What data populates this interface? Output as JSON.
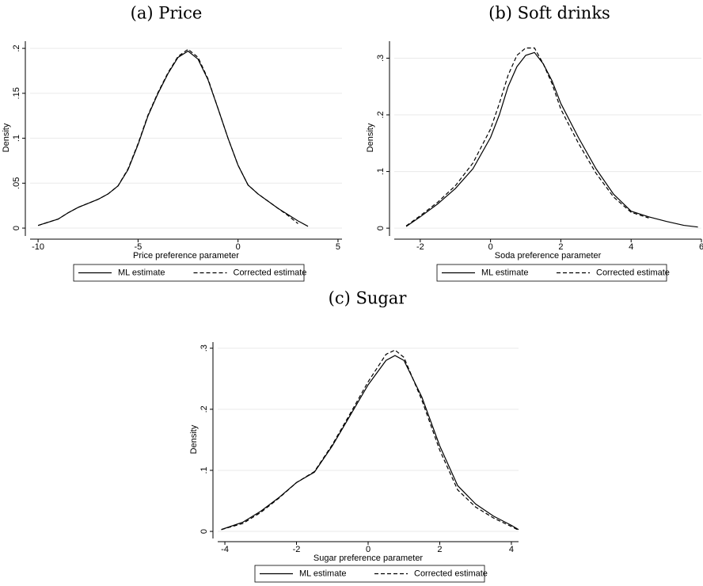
{
  "chart_data": [
    {
      "type": "line",
      "title": "(a) Price",
      "xlabel": "Price preference parameter",
      "ylabel": "Density",
      "grid": true,
      "xlim": [
        -10.4,
        5.2
      ],
      "xticks": [
        -10,
        -5,
        0,
        5
      ],
      "ylim": [
        -0.007,
        0.208
      ],
      "yticks": [
        0,
        {
          "value": 0.05,
          "label": ".05"
        },
        {
          "value": 0.1,
          "label": ".1"
        },
        {
          "value": 0.15,
          "label": ".15"
        },
        {
          "value": 0.2,
          "label": ".2"
        }
      ],
      "x": [
        -10,
        -9,
        -8.5,
        -8,
        -7,
        -6.5,
        -6,
        -5.5,
        -5,
        -4.5,
        -4,
        -3.5,
        -3,
        -2.5,
        -2,
        -1.5,
        -1,
        -0.5,
        0,
        0.5,
        1,
        1.5,
        2,
        2.5,
        3,
        3.5
      ],
      "series": [
        {
          "name": "ML estimate",
          "color": "#000000",
          "style": "solid",
          "values": [
            0.003,
            0.01,
            0.017,
            0.023,
            0.032,
            0.038,
            0.047,
            0.065,
            0.093,
            0.125,
            0.15,
            0.172,
            0.19,
            0.197,
            0.188,
            0.165,
            0.133,
            0.1,
            0.07,
            0.048,
            0.038,
            0.03,
            0.022,
            0.015,
            0.008,
            0.002
          ]
        },
        {
          "name": "Corrected estimate",
          "color": "#000000",
          "style": "dashed",
          "values": [
            0.003,
            0.01,
            0.017,
            0.023,
            0.032,
            0.038,
            0.047,
            0.066,
            0.094,
            0.126,
            0.151,
            0.173,
            0.191,
            0.199,
            0.19,
            0.166,
            0.133,
            0.1,
            0.07,
            0.048,
            0.038,
            0.03,
            0.022,
            0.014,
            0.005,
            null
          ]
        }
      ]
    },
    {
      "type": "line",
      "title": "(b) Soft drinks",
      "xlabel": "Soda preference parameter",
      "ylabel": "Density",
      "grid": true,
      "xlim": [
        -2.74,
        6
      ],
      "xticks": [
        -2,
        0,
        2,
        4,
        6
      ],
      "ylim": [
        -0.011,
        0.33
      ],
      "yticks": [
        0,
        {
          "value": 0.1,
          "label": ".1"
        },
        {
          "value": 0.2,
          "label": ".2"
        },
        {
          "value": 0.3,
          "label": ".3"
        }
      ],
      "x": [
        -2.4,
        -2,
        -1.5,
        -1,
        -0.5,
        0,
        0.25,
        0.5,
        0.75,
        1,
        1.25,
        1.5,
        1.75,
        2,
        2.5,
        3,
        3.5,
        4,
        4.5,
        5,
        5.5,
        5.9
      ],
      "series": [
        {
          "name": "ML estimate",
          "color": "#000000",
          "style": "solid",
          "values": [
            0.003,
            0.02,
            0.043,
            0.07,
            0.105,
            0.16,
            0.2,
            0.25,
            0.285,
            0.305,
            0.31,
            0.29,
            0.26,
            0.22,
            0.16,
            0.105,
            0.06,
            0.03,
            0.02,
            0.012,
            0.005,
            0.002
          ]
        },
        {
          "name": "Corrected estimate",
          "color": "#000000",
          "style": "dashed",
          "values": [
            0.004,
            0.022,
            0.046,
            0.075,
            0.115,
            0.175,
            0.22,
            0.27,
            0.305,
            0.318,
            0.318,
            0.29,
            0.255,
            0.21,
            0.15,
            0.097,
            0.055,
            0.028,
            0.018,
            null,
            null,
            null
          ]
        }
      ]
    },
    {
      "type": "line",
      "title": "(c) Sugar",
      "xlabel": "Sugar preference parameter",
      "ylabel": "Density",
      "grid": true,
      "xlim": [
        -4.2,
        4.2
      ],
      "xticks": [
        -4,
        -2,
        0,
        2,
        4
      ],
      "ylim": [
        -0.009,
        0.31
      ],
      "yticks": [
        0,
        {
          "value": 0.1,
          "label": ".1"
        },
        {
          "value": 0.2,
          "label": ".2"
        },
        {
          "value": 0.3,
          "label": ".3"
        }
      ],
      "x": [
        -4.1,
        -3.5,
        -3,
        -2.5,
        -2,
        -1.5,
        -1,
        -0.5,
        0,
        0.5,
        0.75,
        1,
        1.5,
        2,
        2.5,
        3,
        3.5,
        4,
        4.2
      ],
      "series": [
        {
          "name": "ML estimate",
          "color": "#000000",
          "style": "solid",
          "values": [
            0.003,
            0.015,
            0.033,
            0.055,
            0.08,
            0.097,
            0.14,
            0.19,
            0.24,
            0.28,
            0.288,
            0.28,
            0.22,
            0.14,
            0.075,
            0.045,
            0.025,
            0.01,
            0.003
          ]
        },
        {
          "name": "Corrected estimate",
          "color": "#000000",
          "style": "dashed",
          "values": [
            0.003,
            0.013,
            0.031,
            0.054,
            0.08,
            0.098,
            0.142,
            0.193,
            0.245,
            0.29,
            0.297,
            0.285,
            0.215,
            0.133,
            0.068,
            0.04,
            0.022,
            0.008,
            0.002
          ]
        }
      ]
    }
  ]
}
